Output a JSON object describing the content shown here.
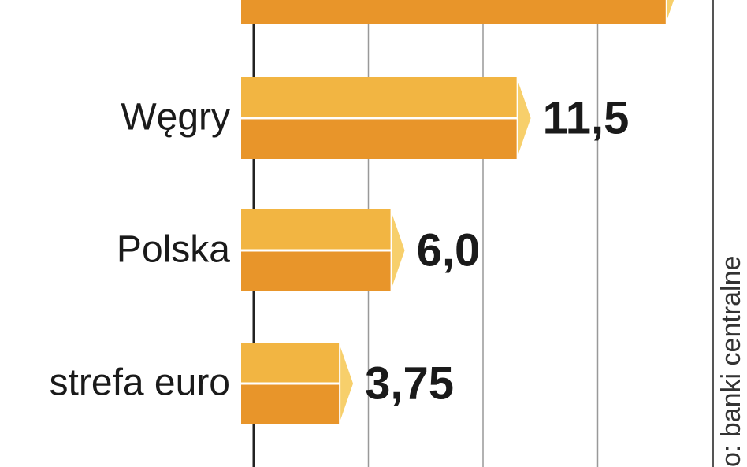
{
  "chart_data": {
    "type": "bar",
    "orientation": "horizontal",
    "source": "o: banki centralne",
    "categories": [
      null,
      "Węgry",
      "Polska",
      "strefa euro"
    ],
    "values": [
      18,
      11.5,
      6.0,
      3.75
    ],
    "value_labels": [
      null,
      "11,5",
      "6,0",
      "3,75"
    ],
    "colors": {
      "top": "#f2b542",
      "bottom": "#e8952a",
      "cap": "#f7cf6b"
    },
    "xlim": [
      0,
      20
    ],
    "xticks": [
      0,
      5,
      10,
      15
    ],
    "grid": true
  }
}
